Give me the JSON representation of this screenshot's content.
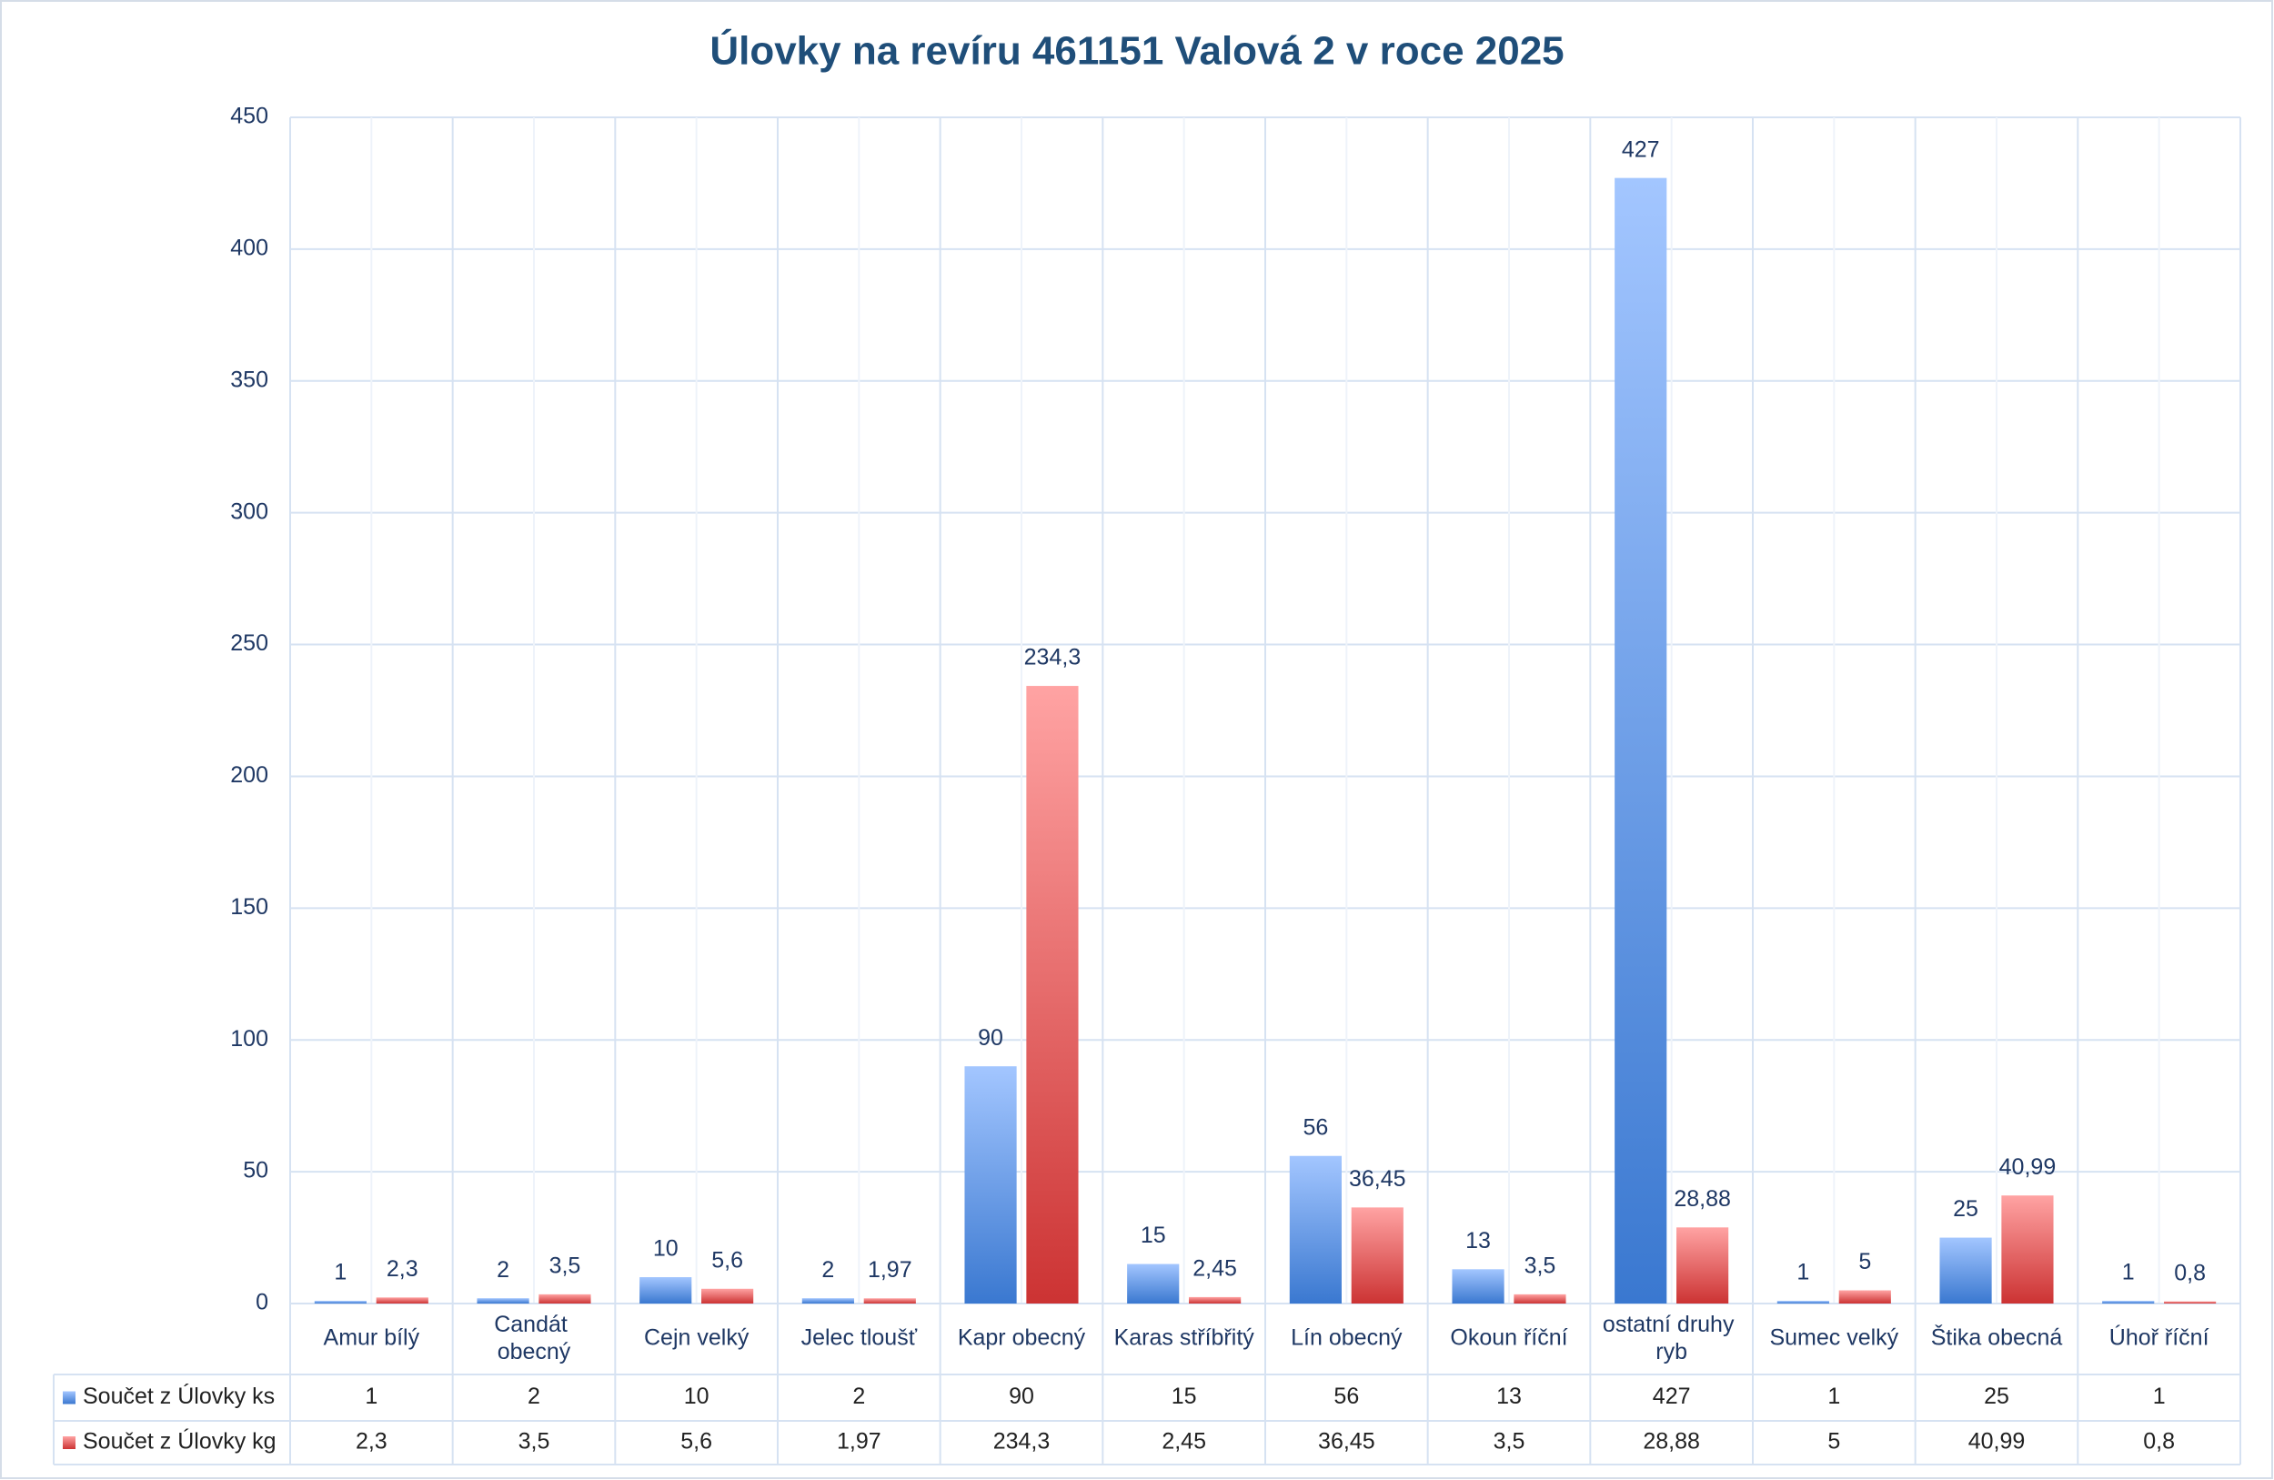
{
  "chart_data": {
    "type": "bar",
    "title": "Úlovky na revíru 461151 Valová 2 v roce 2025",
    "categories": [
      "Amur bílý",
      "Candát obecný",
      "Cejn velký",
      "Jelec tloušť",
      "Kapr obecný",
      "Karas stříbřitý",
      "Lín obecný",
      "Okoun říční",
      "ostatní druhy ryb",
      "Sumec velký",
      "Štika obecná",
      "Úhoř říční"
    ],
    "series": [
      {
        "name": "Součet z Úlovky ks",
        "color": "#3a78d0",
        "values": [
          1,
          2,
          10,
          2,
          90,
          15,
          56,
          13,
          427,
          1,
          25,
          1
        ],
        "value_labels": [
          "1",
          "2",
          "10",
          "2",
          "90",
          "15",
          "56",
          "13",
          "427",
          "1",
          "25",
          "1"
        ]
      },
      {
        "name": "Součet z Úlovky kg",
        "color": "#cc3333",
        "values": [
          2.3,
          3.5,
          5.6,
          1.97,
          234.3,
          2.45,
          36.45,
          3.5,
          28.88,
          5,
          40.99,
          0.8
        ],
        "value_labels": [
          "2,3",
          "3,5",
          "5,6",
          "1,97",
          "234,3",
          "2,45",
          "36,45",
          "3,5",
          "28,88",
          "5",
          "40,99",
          "0,8"
        ]
      }
    ],
    "ylim": [
      0,
      450
    ],
    "yticks": [
      0,
      50,
      100,
      150,
      200,
      250,
      300,
      350,
      400,
      450
    ],
    "grid": true
  }
}
